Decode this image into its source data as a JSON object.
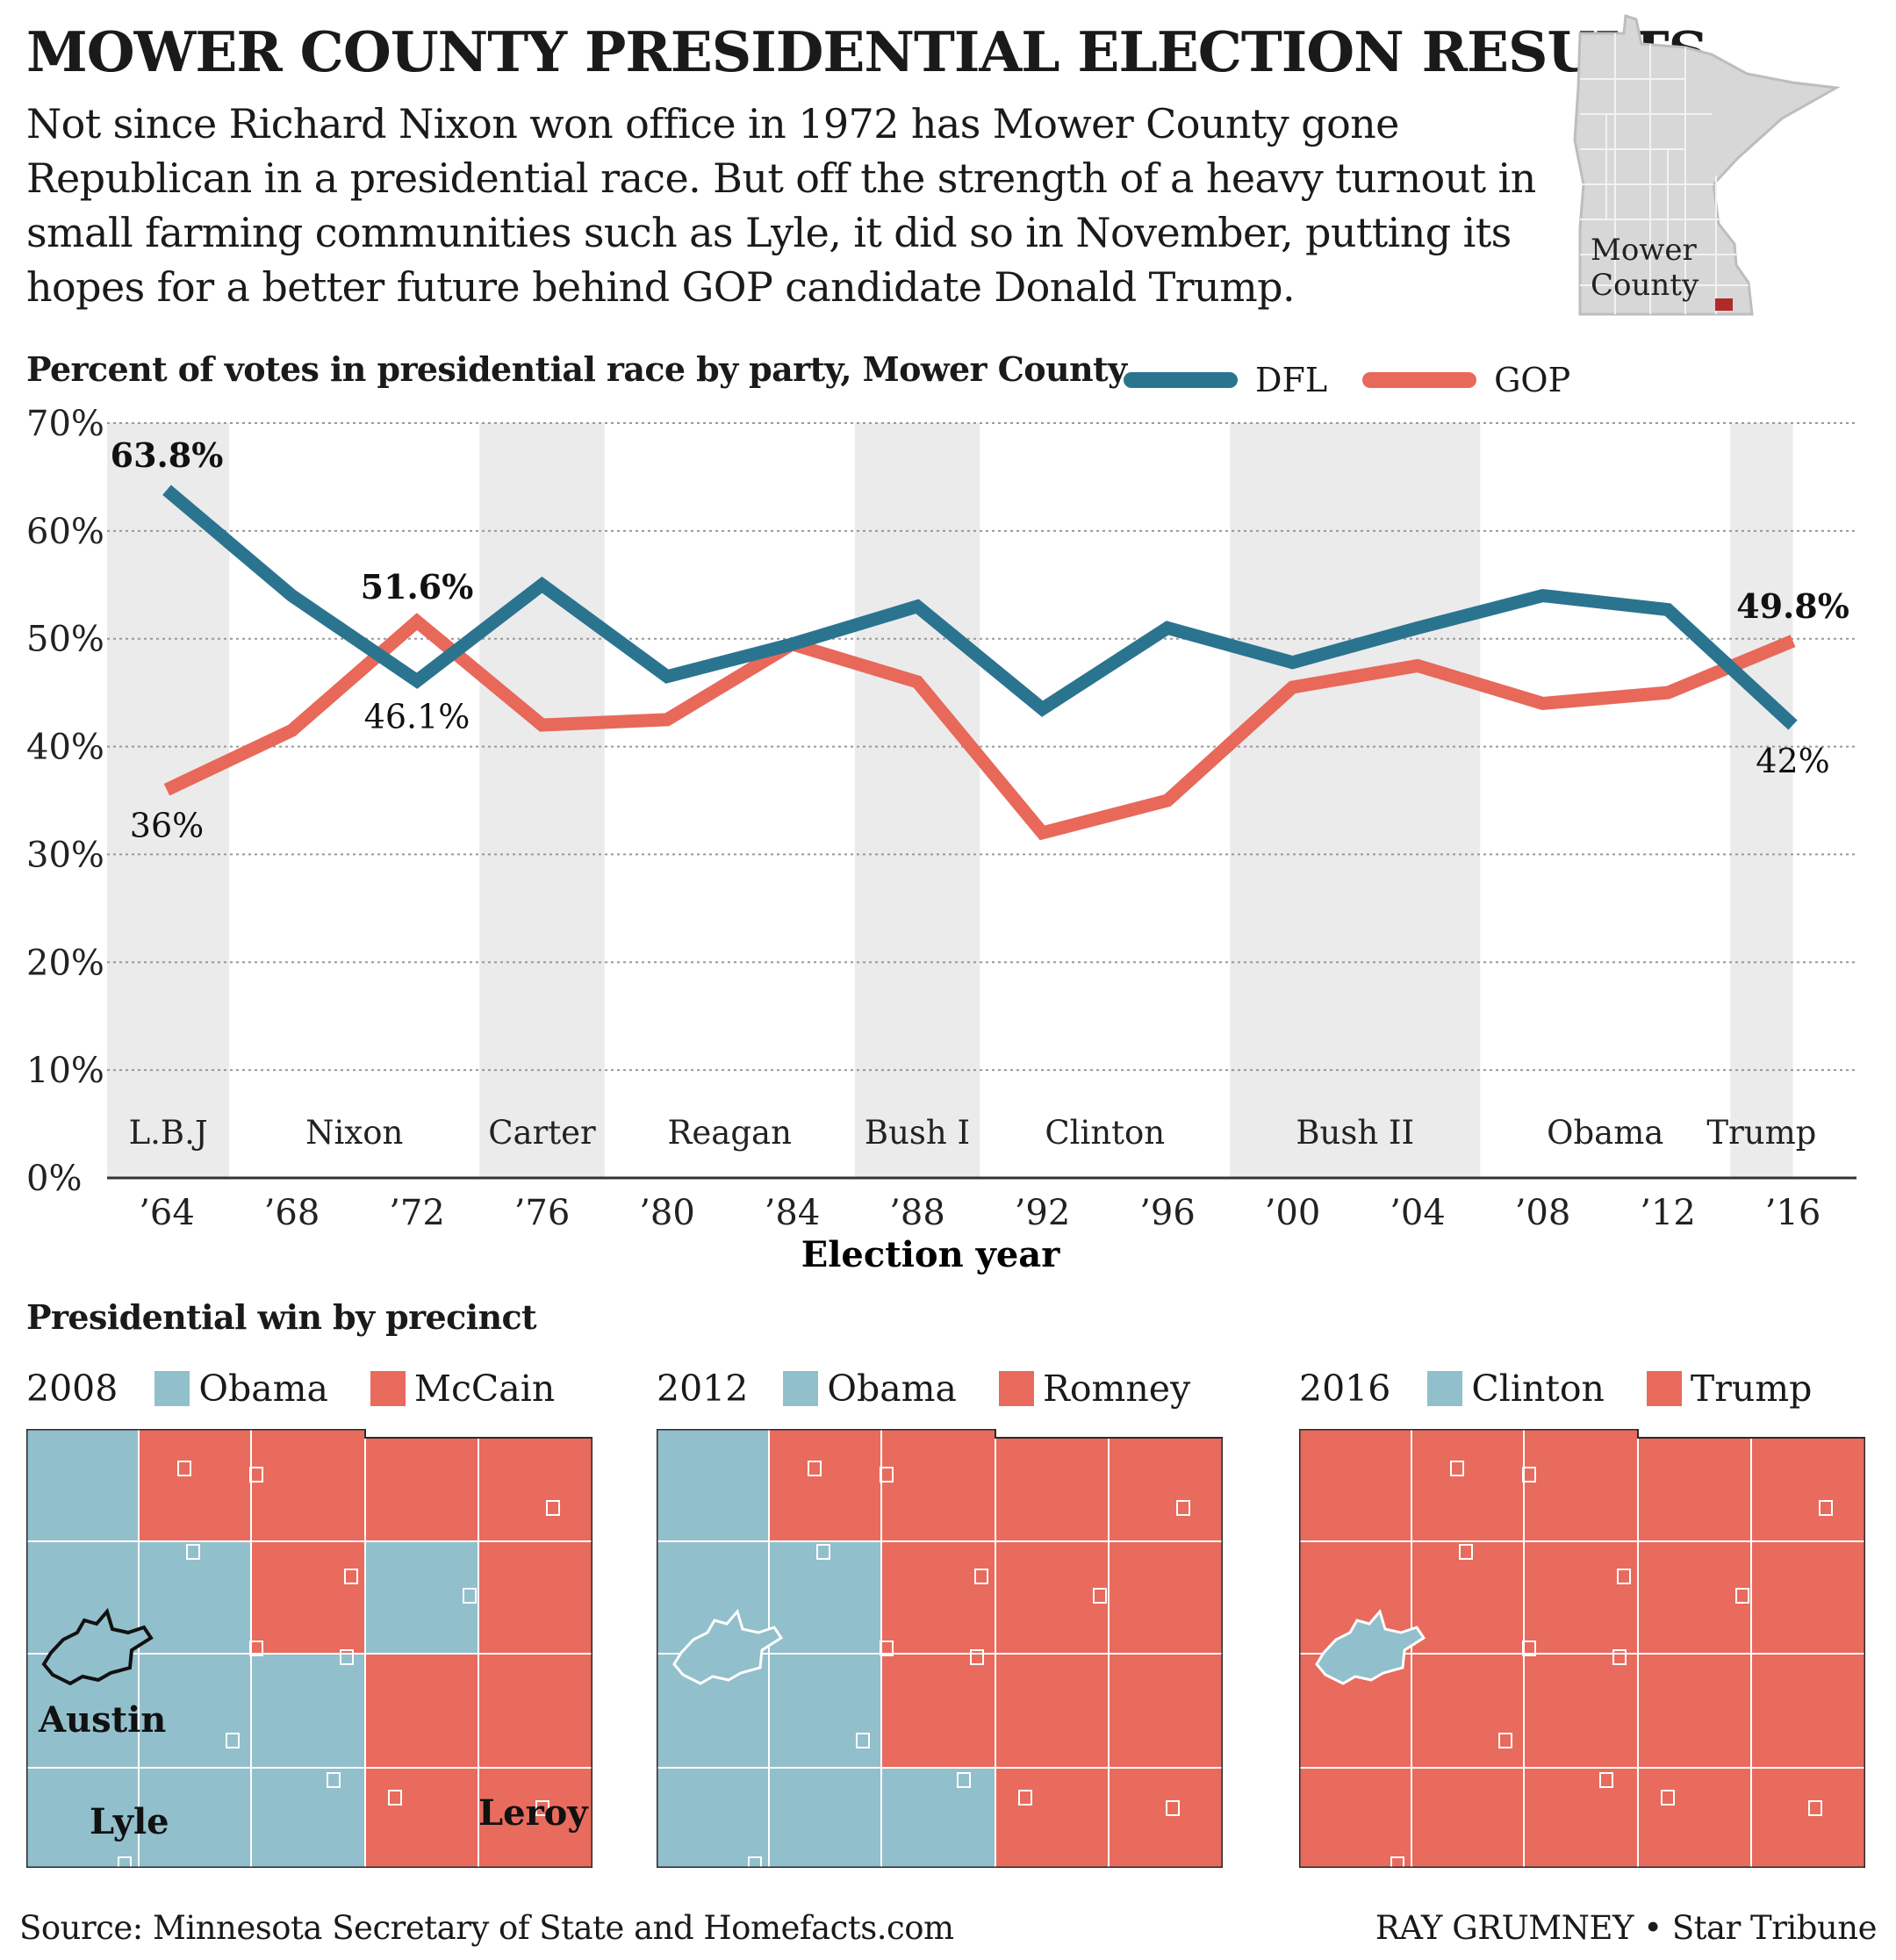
{
  "title": "MOWER COUNTY PRESIDENTIAL ELECTION RESULTS",
  "intro_lines": [
    "Not since Richard Nixon won office in 1972 has Mower County gone",
    "Republican in a presidential race. But off the strength of a heavy turnout in",
    "small farming communities such as Lyle, it did so in November, putting its",
    "hopes for a better future behind GOP candidate Donald Trump."
  ],
  "locator": {
    "line1": "Mower",
    "line2": "County"
  },
  "chart_data": {
    "type": "line",
    "title": "Percent of votes in presidential race by party, Mower County",
    "xlabel": "Election year",
    "ylabel": "",
    "ylim": [
      0,
      70
    ],
    "yticks": [
      "0%",
      "10%",
      "20%",
      "30%",
      "40%",
      "50%",
      "60%",
      "70%"
    ],
    "ytick_values": [
      0,
      10,
      20,
      30,
      40,
      50,
      60,
      70
    ],
    "x": [
      1964,
      1968,
      1972,
      1976,
      1980,
      1984,
      1988,
      1992,
      1996,
      2000,
      2004,
      2008,
      2012,
      2016
    ],
    "x_tick_labels": [
      "’64",
      "’68",
      "’72",
      "’76",
      "’80",
      "’84",
      "’88",
      "’92",
      "’96",
      "’00",
      "’04",
      "’08",
      "’12",
      "’16"
    ],
    "grid": true,
    "legend": "top-right",
    "series": [
      {
        "name": "DFL",
        "color": "#2b7490",
        "values": [
          63.8,
          54,
          46.1,
          55,
          46.5,
          49.5,
          53,
          43.5,
          51,
          47.8,
          51,
          54,
          52.7,
          42
        ]
      },
      {
        "name": "GOP",
        "color": "#e8685a",
        "values": [
          36,
          41.5,
          51.6,
          42,
          42.5,
          49.5,
          46,
          32,
          35,
          45.5,
          47.5,
          44,
          45,
          49.8
        ]
      }
    ],
    "administrations": [
      {
        "name": "L.B.J",
        "start": 1964,
        "end": 1968,
        "shaded": true
      },
      {
        "name": "Nixon",
        "start": 1968,
        "end": 1976,
        "shaded": false
      },
      {
        "name": "Carter",
        "start": 1976,
        "end": 1980,
        "shaded": true
      },
      {
        "name": "Reagan",
        "start": 1980,
        "end": 1988,
        "shaded": false
      },
      {
        "name": "Bush I",
        "start": 1988,
        "end": 1992,
        "shaded": true
      },
      {
        "name": "Clinton",
        "start": 1992,
        "end": 2000,
        "shaded": false
      },
      {
        "name": "Bush II",
        "start": 2000,
        "end": 2008,
        "shaded": true
      },
      {
        "name": "Obama",
        "start": 2008,
        "end": 2016,
        "shaded": false
      },
      {
        "name": "Trump",
        "start": 2016,
        "end": 2018,
        "shaded": true
      }
    ],
    "annotations": [
      {
        "text": "63.8%",
        "series": "DFL",
        "x": 1964,
        "y": 63.8,
        "bold": true,
        "pos": "above"
      },
      {
        "text": "36%",
        "series": "GOP",
        "x": 1964,
        "y": 36,
        "bold": false,
        "pos": "below"
      },
      {
        "text": "51.6%",
        "series": "GOP",
        "x": 1972,
        "y": 51.6,
        "bold": true,
        "pos": "above"
      },
      {
        "text": "46.1%",
        "series": "DFL",
        "x": 1972,
        "y": 46.1,
        "bold": false,
        "pos": "below"
      },
      {
        "text": "49.8%",
        "series": "GOP",
        "x": 2016,
        "y": 49.8,
        "bold": true,
        "pos": "above"
      },
      {
        "text": "42%",
        "series": "DFL",
        "x": 2016,
        "y": 42,
        "bold": false,
        "pos": "below"
      }
    ]
  },
  "precinct_section": {
    "title": "Presidential win by precinct",
    "dem_color": "#92bfcc",
    "gop_color": "#e86b5d",
    "maps": [
      {
        "year": "2008",
        "dem": "Obama",
        "gop": "McCain"
      },
      {
        "year": "2012",
        "dem": "Obama",
        "gop": "Romney"
      },
      {
        "year": "2016",
        "dem": "Clinton",
        "gop": "Trump"
      }
    ],
    "towns": {
      "austin": "Austin",
      "lyle": "Lyle",
      "leroy": "Leroy"
    }
  },
  "source": "Source: Minnesota Secretary of State and Homefacts.com",
  "credit": "RAY GRUMNEY • Star Tribune"
}
